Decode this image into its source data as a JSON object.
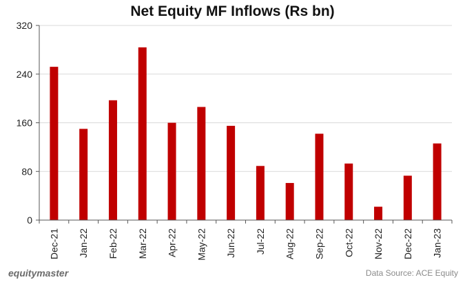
{
  "chart_data": {
    "type": "bar",
    "title": "Net Equity MF Inflows (Rs bn)",
    "categories": [
      "Dec-21",
      "Jan-22",
      "Feb-22",
      "Mar-22",
      "Apr-22",
      "May-22",
      "Jun-22",
      "Jul-22",
      "Aug-22",
      "Sep-22",
      "Oct-22",
      "Nov-22",
      "Dec-22",
      "Jan-23"
    ],
    "values": [
      252,
      150,
      197,
      284,
      160,
      186,
      155,
      89,
      61,
      142,
      93,
      22,
      73,
      126
    ],
    "ylim": [
      0,
      320
    ],
    "yticks": [
      0,
      80,
      160,
      240,
      320
    ],
    "xlabel": "",
    "ylabel": "",
    "grid": true,
    "bar_color": "#c00000"
  },
  "footer": {
    "brand": "equitymaster",
    "source": "Data Source: ACE Equity"
  }
}
